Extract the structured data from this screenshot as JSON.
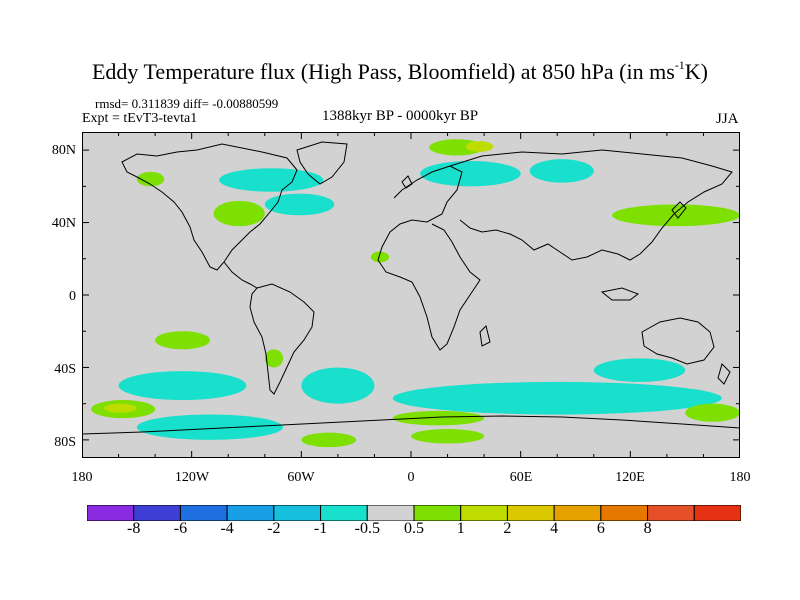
{
  "header": {
    "title_main": "Eddy Temperature flux (High Pass, Bloomfield) at 850 hPa (in ms",
    "title_sup": "-1",
    "title_end": "K)",
    "stats": "rmsd= 0.311839 diff= -0.00880599",
    "experiment": "Expt = tEvT3-tevta1",
    "period": "1388kyr BP - 0000kyr BP",
    "season": "JJA"
  },
  "map": {
    "background_color": "#d2d2d2",
    "lat_labels": [
      "80N",
      "40N",
      "0",
      "40S",
      "80S"
    ],
    "lon_labels": [
      "180",
      "120W",
      "60W",
      "0",
      "60E",
      "120E",
      "180"
    ],
    "lon_range": [
      -180,
      180
    ],
    "lat_range": [
      -90,
      90
    ],
    "coastline_color": "#000000",
    "anomaly_regions": [
      {
        "sign": "neg",
        "level": "light",
        "lon": [
          -105,
          -48
        ],
        "lat": [
          57,
          70
        ]
      },
      {
        "sign": "neg",
        "level": "light",
        "lon": [
          -80,
          -42
        ],
        "lat": [
          44,
          56
        ]
      },
      {
        "sign": "neg",
        "level": "light",
        "lon": [
          5,
          60
        ],
        "lat": [
          60,
          74
        ]
      },
      {
        "sign": "neg",
        "level": "light",
        "lon": [
          65,
          100
        ],
        "lat": [
          62,
          75
        ]
      },
      {
        "sign": "pos",
        "level": "green",
        "lon": [
          10,
          40
        ],
        "lat": [
          77,
          86
        ]
      },
      {
        "sign": "pos",
        "level": "yellow",
        "lon": [
          30,
          45
        ],
        "lat": [
          79,
          85
        ]
      },
      {
        "sign": "pos",
        "level": "green",
        "lon": [
          -108,
          -80
        ],
        "lat": [
          38,
          52
        ]
      },
      {
        "sign": "pos",
        "level": "green",
        "lon": [
          -150,
          -135
        ],
        "lat": [
          60,
          68
        ]
      },
      {
        "sign": "pos",
        "level": "green",
        "lon": [
          110,
          180
        ],
        "lat": [
          38,
          50
        ]
      },
      {
        "sign": "pos",
        "level": "green",
        "lon": [
          -22,
          -12
        ],
        "lat": [
          18,
          24
        ]
      },
      {
        "sign": "neg",
        "level": "light",
        "lon": [
          -160,
          -90
        ],
        "lat": [
          -58,
          -42
        ]
      },
      {
        "sign": "neg",
        "level": "light",
        "lon": [
          -60,
          -20
        ],
        "lat": [
          -60,
          -40
        ]
      },
      {
        "sign": "neg",
        "level": "light",
        "lon": [
          -10,
          170
        ],
        "lat": [
          -66,
          -48
        ]
      },
      {
        "sign": "neg",
        "level": "light",
        "lon": [
          -150,
          -70
        ],
        "lat": [
          -80,
          -66
        ]
      },
      {
        "sign": "neg",
        "level": "light",
        "lon": [
          100,
          150
        ],
        "lat": [
          -48,
          -35
        ]
      },
      {
        "sign": "pos",
        "level": "green",
        "lon": [
          -175,
          -140
        ],
        "lat": [
          -68,
          -58
        ]
      },
      {
        "sign": "pos",
        "level": "yellow",
        "lon": [
          -168,
          -150
        ],
        "lat": [
          -65,
          -60
        ]
      },
      {
        "sign": "pos",
        "level": "green",
        "lon": [
          -10,
          40
        ],
        "lat": [
          -72,
          -64
        ]
      },
      {
        "sign": "pos",
        "level": "green",
        "lon": [
          0,
          40
        ],
        "lat": [
          -82,
          -74
        ]
      },
      {
        "sign": "pos",
        "level": "green",
        "lon": [
          -60,
          -30
        ],
        "lat": [
          -84,
          -76
        ]
      },
      {
        "sign": "pos",
        "level": "green",
        "lon": [
          150,
          180
        ],
        "lat": [
          -70,
          -60
        ]
      },
      {
        "sign": "pos",
        "level": "green",
        "lon": [
          -140,
          -110
        ],
        "lat": [
          -30,
          -20
        ]
      },
      {
        "sign": "pos",
        "level": "green",
        "lon": [
          -80,
          -70
        ],
        "lat": [
          -40,
          -30
        ]
      }
    ]
  },
  "colorbar": {
    "colors": [
      "#8a2be2",
      "#3f3fd8",
      "#1f6fe0",
      "#18a0e6",
      "#18c0e0",
      "#18e0cc",
      "#d2d2d2",
      "#7ee000",
      "#bedc00",
      "#dcc800",
      "#e6a000",
      "#e67800",
      "#e65028",
      "#e63214"
    ],
    "labels": [
      "-8",
      "-6",
      "-4",
      "-2",
      "-1",
      "-0.5",
      "0.5",
      "1",
      "2",
      "4",
      "6",
      "8"
    ]
  }
}
